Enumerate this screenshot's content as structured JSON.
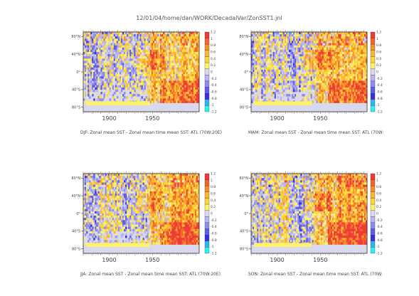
{
  "title": "12/01/04/home/dan/WORK/DecadalVar/ZonSST1.jnl",
  "colorbar": {
    "levels": [
      "1.2",
      "1",
      "0.8",
      "0.6",
      "0.4",
      "0.2",
      "0",
      "-0.2",
      "-0.4",
      "-0.6",
      "-0.8",
      "-1",
      "-1.2"
    ],
    "colors": [
      "#ef3a3a",
      "#f2652b",
      "#f5902c",
      "#fab634",
      "#fcd538",
      "#fdf26a",
      "#d8d8ee",
      "#b7b5f2",
      "#8f8cf0",
      "#5f5ce6",
      "#3a2fe0",
      "#2fb4ee",
      "#2ff0f0"
    ]
  },
  "chart_data": [
    {
      "type": "heatmap",
      "season": "DJF",
      "caption": "DJF: Zonal mean SST - Zonal mean time mean SST: ATL (70W:20E)",
      "x_ticks": [
        "1900",
        "1950"
      ],
      "y_ticks": [
        "80°N",
        "40°N",
        "0°",
        "40°S",
        "80°S"
      ],
      "value_range": [
        -1.2,
        1.2
      ]
    },
    {
      "type": "heatmap",
      "season": "MAM",
      "caption": "MAM: Zonal mean SST - Zonal mean time mean SST: ATL (70W:",
      "x_ticks": [
        "1900",
        "1950"
      ],
      "y_ticks": [
        "80°N",
        "40°N",
        "0°",
        "40°S",
        "80°S"
      ],
      "value_range": [
        -1.2,
        1.2
      ]
    },
    {
      "type": "heatmap",
      "season": "JJA",
      "caption": "JJA: Zonal mean SST - Zonal mean time mean SST: ATL (70W:20E)",
      "x_ticks": [
        "1900",
        "1950"
      ],
      "y_ticks": [
        "80°N",
        "40°N",
        "0°",
        "40°S",
        "80°S"
      ],
      "value_range": [
        -1.2,
        1.2
      ]
    },
    {
      "type": "heatmap",
      "season": "SON",
      "caption": "SON: Zonal mean SST - Zonal mean time mean SST: ATL (70W:",
      "x_ticks": [
        "1900",
        "1950"
      ],
      "y_ticks": [
        "80°N",
        "40°N",
        "0°",
        "40°S",
        "80°S"
      ],
      "value_range": [
        -1.2,
        1.2
      ]
    }
  ]
}
